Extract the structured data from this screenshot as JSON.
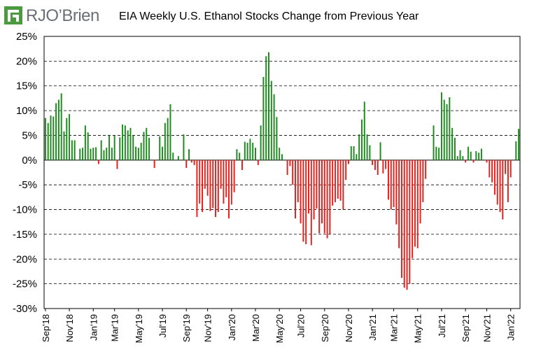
{
  "logo": {
    "text": "RJO’Brien"
  },
  "chart_data": {
    "type": "bar",
    "title": "EIA Weekly U.S. Ethanol Stocks Change from Previous Year",
    "xlabel": "",
    "ylabel": "",
    "ylim": [
      -0.3,
      0.25
    ],
    "y_ticks": [
      0.25,
      0.2,
      0.15,
      0.1,
      0.05,
      0,
      -0.05,
      -0.1,
      -0.15,
      -0.2,
      -0.25,
      -0.3
    ],
    "y_tick_labels": [
      "25%",
      "20%",
      "15%",
      "10%",
      "5%",
      "0%",
      "-5%",
      "-10%",
      "-15%",
      "-20%",
      "-25%",
      "-30%"
    ],
    "x_tick_labels": [
      "Sep'18",
      "Nov'18",
      "Jan'19",
      "Mar'19",
      "May'19",
      "Jul'19",
      "Sep'19",
      "Nov'19",
      "Jan'20",
      "Mar'20",
      "May'20",
      "Jul'20",
      "Sep'20",
      "Nov'20",
      "Jan'21",
      "Mar'21",
      "May'21",
      "Jul'21",
      "Sep'21",
      "Nov'21",
      "Jan'22"
    ],
    "x_tick_weeks": [
      0,
      9,
      18,
      26,
      35,
      44,
      53,
      61,
      70,
      79,
      88,
      96,
      105,
      114,
      123,
      131,
      140,
      149,
      158,
      166,
      175
    ],
    "grid": true,
    "positive_color": "#1f8a1f",
    "negative_color": "#e0231f",
    "values": [
      0.085,
      0.075,
      0.09,
      0.088,
      0.115,
      0.122,
      0.135,
      0.058,
      0.085,
      0.093,
      0.04,
      0.04,
      0.0,
      0.023,
      0.025,
      0.07,
      0.056,
      0.023,
      0.025,
      0.026,
      -0.008,
      0.04,
      0.02,
      0.025,
      0.05,
      0.025,
      0.05,
      -0.018,
      0.046,
      0.072,
      0.07,
      0.06,
      0.065,
      0.05,
      0.027,
      0.025,
      0.035,
      0.057,
      0.065,
      0.045,
      0.0,
      -0.016,
      0.0,
      0.048,
      0.027,
      0.075,
      0.085,
      0.113,
      0.015,
      0.0,
      0.008,
      0.0,
      0.052,
      -0.016,
      0.022,
      -0.005,
      -0.01,
      -0.115,
      -0.088,
      -0.105,
      -0.058,
      -0.072,
      -0.103,
      -0.097,
      -0.115,
      -0.105,
      -0.058,
      -0.088,
      -0.075,
      -0.118,
      -0.09,
      -0.065,
      0.022,
      0.015,
      -0.02,
      0.037,
      0.035,
      0.043,
      0.035,
      0.025,
      -0.01,
      0.07,
      0.168,
      0.21,
      0.218,
      0.16,
      0.133,
      0.087,
      0.025,
      0.012,
      0.0,
      -0.03,
      -0.012,
      -0.05,
      -0.118,
      -0.085,
      -0.128,
      -0.165,
      -0.17,
      -0.108,
      -0.172,
      -0.12,
      -0.098,
      -0.148,
      -0.128,
      -0.148,
      -0.158,
      -0.15,
      -0.092,
      -0.085,
      -0.078,
      -0.082,
      -0.1,
      -0.04,
      -0.008,
      0.028,
      0.028,
      0.012,
      0.052,
      0.082,
      0.118,
      0.052,
      0.03,
      -0.01,
      -0.02,
      -0.03,
      0.036,
      -0.027,
      -0.018,
      -0.08,
      -0.1,
      -0.095,
      -0.13,
      -0.178,
      -0.238,
      -0.258,
      -0.262,
      -0.25,
      -0.198,
      -0.175,
      -0.178,
      -0.128,
      -0.085,
      -0.038,
      0.0,
      0.0,
      0.07,
      0.027,
      0.025,
      0.137,
      0.122,
      0.113,
      0.127,
      0.065,
      0.045,
      0.008,
      0.02,
      0.008,
      -0.005,
      0.027,
      0.017,
      -0.005,
      0.018,
      0.015,
      0.023,
      0.0,
      -0.005,
      -0.035,
      -0.045,
      -0.07,
      -0.09,
      -0.105,
      -0.12,
      -0.028,
      -0.085,
      -0.035,
      0.0,
      0.038,
      0.063
    ]
  }
}
